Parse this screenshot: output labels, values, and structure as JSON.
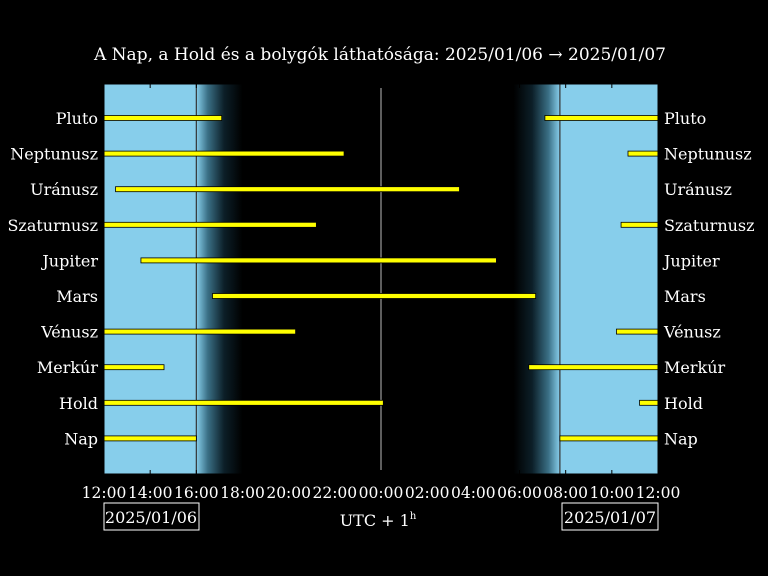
{
  "chart_data": {
    "type": "bar",
    "title": "A Nap, a Hold és a bolygók láthatósága: 2025/01/06 → 2025/01/07",
    "xlabel": "UTC + 1",
    "xlabel_sup": "h",
    "date_start": "2025/01/06",
    "date_end": "2025/01/07",
    "x_range_hours": [
      12,
      36
    ],
    "tick_labels": [
      "12:00",
      "14:00",
      "16:00",
      "18:00",
      "20:00",
      "22:00",
      "00:00",
      "02:00",
      "04:00",
      "06:00",
      "08:00",
      "10:00",
      "12:00"
    ],
    "sunset": 16.0,
    "sunrise": 31.75,
    "night_core": [
      18.0,
      29.75
    ],
    "midnight": 24.0,
    "colors": {
      "day": "#87ceeb",
      "night": "#000000",
      "bar": "#ffff00",
      "background": "#000000",
      "text": "#ffffff"
    },
    "bodies": [
      {
        "name": "Pluto",
        "intervals": [
          [
            12.0,
            17.1
          ],
          [
            31.1,
            36.0
          ]
        ]
      },
      {
        "name": "Neptunusz",
        "intervals": [
          [
            12.0,
            22.4
          ],
          [
            34.7,
            36.0
          ]
        ]
      },
      {
        "name": "Uránusz",
        "intervals": [
          [
            12.5,
            27.4
          ]
        ]
      },
      {
        "name": "Szaturnusz",
        "intervals": [
          [
            12.0,
            21.2
          ],
          [
            34.4,
            36.0
          ]
        ]
      },
      {
        "name": "Jupiter",
        "intervals": [
          [
            13.6,
            29.0
          ]
        ]
      },
      {
        "name": "Mars",
        "intervals": [
          [
            16.7,
            30.7
          ]
        ]
      },
      {
        "name": "Vénusz",
        "intervals": [
          [
            12.0,
            20.3
          ],
          [
            34.2,
            36.0
          ]
        ]
      },
      {
        "name": "Merkúr",
        "intervals": [
          [
            12.0,
            14.6
          ],
          [
            30.4,
            36.0
          ]
        ]
      },
      {
        "name": "Hold",
        "intervals": [
          [
            12.0,
            24.1
          ],
          [
            35.2,
            36.0
          ]
        ]
      },
      {
        "name": "Nap",
        "intervals": [
          [
            12.0,
            16.0
          ],
          [
            31.75,
            36.0
          ]
        ]
      }
    ]
  }
}
